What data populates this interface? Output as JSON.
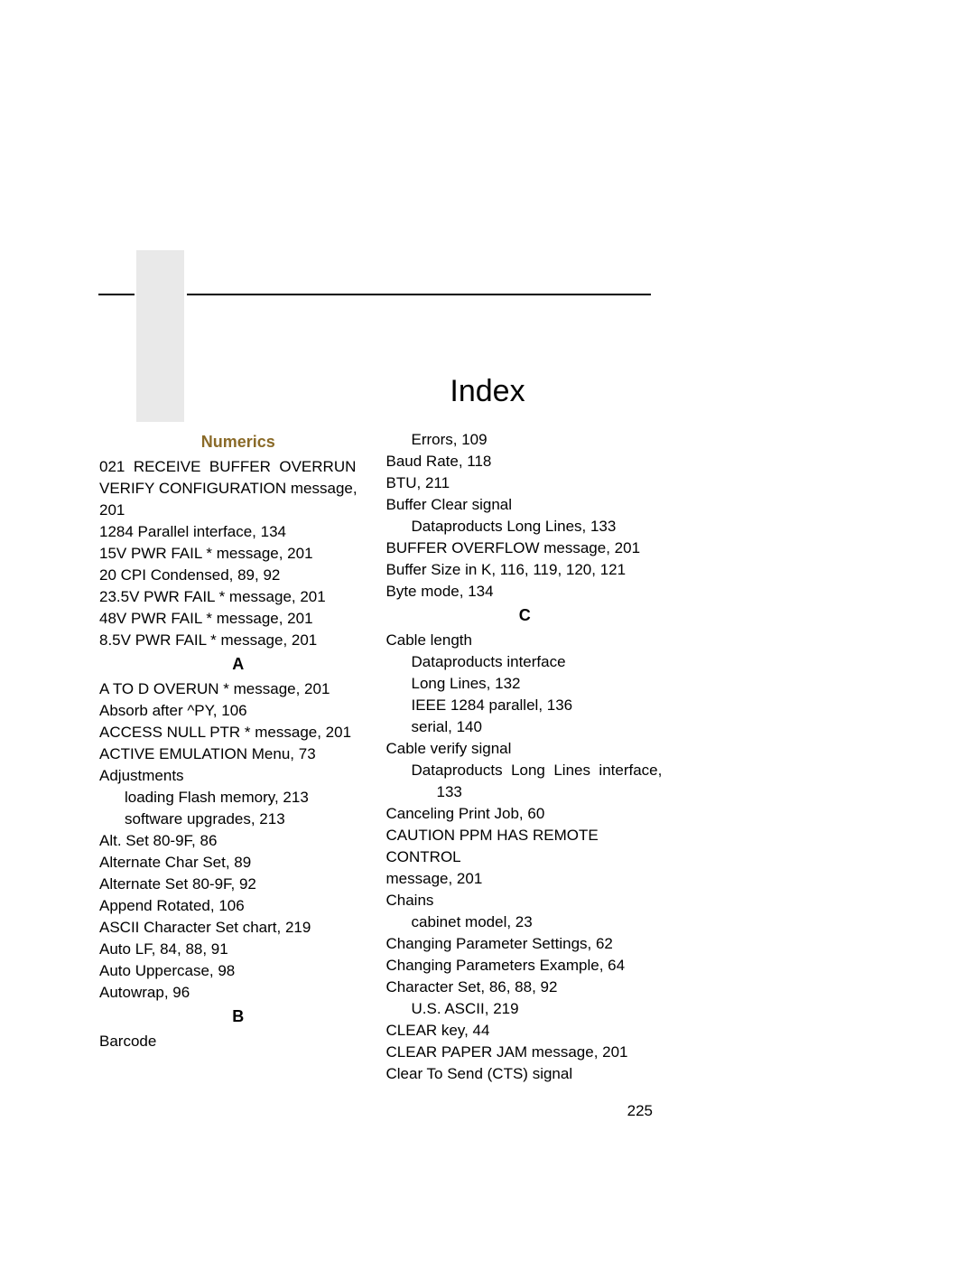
{
  "title": "Index",
  "page_number": "225",
  "left": {
    "heading_numerics": "Numerics",
    "e0": "021 RECEIVE BUFFER OVERRUN",
    "e1": "VERIFY CONFIGURATION message, 201",
    "e2": "1284 Parallel interface, 134",
    "e3": "15V PWR FAIL * message, 201",
    "e4": "20 CPI Condensed, 89, 92",
    "e5": "23.5V PWR FAIL * message, 201",
    "e6": "48V PWR FAIL * message, 201",
    "e7": "8.5V PWR FAIL * message, 201",
    "heading_a": "A",
    "a0": "A TO D OVERUN * message, 201",
    "a1": "Absorb after ^PY, 106",
    "a2": "ACCESS NULL PTR * message, 201",
    "a3": "ACTIVE EMULATION Menu, 73",
    "a4": "Adjustments",
    "a5": "loading Flash memory, 213",
    "a6": "software upgrades, 213",
    "a7": "Alt. Set 80-9F, 86",
    "a8": "Alternate Char Set, 89",
    "a9": "Alternate Set 80-9F, 92",
    "a10": "Append Rotated, 106",
    "a11": "ASCII Character Set chart, 219",
    "a12": "Auto LF, 84, 88, 91",
    "a13": "Auto Uppercase, 98",
    "a14": "Autowrap, 96",
    "heading_b": "B",
    "b0": "Barcode"
  },
  "right": {
    "r0": "Errors, 109",
    "r1": "Baud Rate, 118",
    "r2": "BTU, 211",
    "r3": "Buffer Clear signal",
    "r4": "Dataproducts Long Lines, 133",
    "r5": "BUFFER OVERFLOW message, 201",
    "r6": "Buffer Size in K, 116, 119, 120, 121",
    "r7": "Byte mode, 134",
    "heading_c": "C",
    "c0": "Cable length",
    "c1": "Dataproducts interface",
    "c2": "Long Lines, 132",
    "c3": "IEEE 1284 parallel, 136",
    "c4": "serial, 140",
    "c5": "Cable verify signal",
    "c6": "Dataproducts Long Lines interface,",
    "c7": "133",
    "c8": "Canceling Print Job, 60",
    "c9": "CAUTION PPM HAS REMOTE CONTROL",
    "c10": "message, 201",
    "c11": "Chains",
    "c12": "cabinet model, 23",
    "c13": "Changing Parameter Settings, 62",
    "c14": "Changing Parameters Example, 64",
    "c15": "Character Set, 86, 88, 92",
    "c16": "U.S. ASCII, 219",
    "c17": "CLEAR key, 44",
    "c18": "CLEAR PAPER JAM message, 201",
    "c19": "Clear To Send (CTS) signal"
  }
}
